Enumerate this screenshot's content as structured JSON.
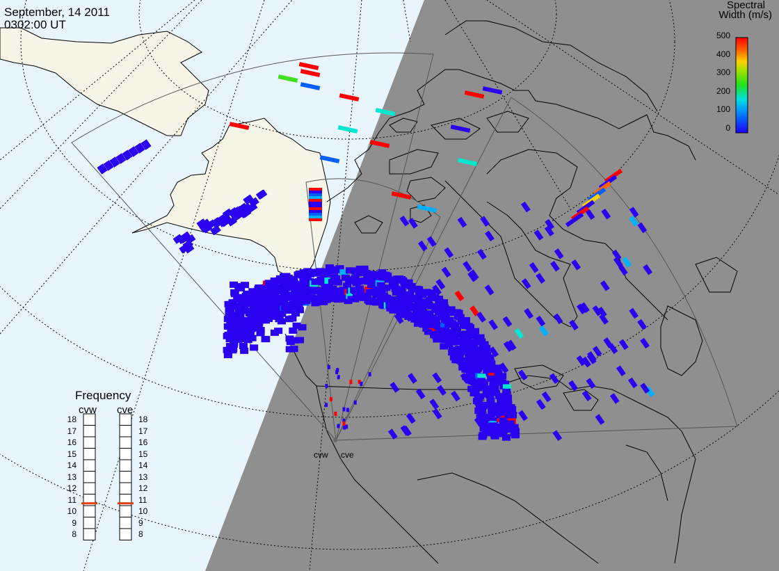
{
  "header": {
    "date": "September, 14 2011",
    "time": "0302:00 UT"
  },
  "legend": {
    "title_line1": "Spectral",
    "title_line2": "Width (m/s)",
    "ticks": [
      "500",
      "400",
      "300",
      "200",
      "100",
      "0"
    ],
    "range": [
      0,
      500
    ]
  },
  "frequency_panel": {
    "title": "Frequency",
    "radars": [
      {
        "label": "cvw",
        "frequency_mhz": 10.7
      },
      {
        "label": "cve",
        "frequency_mhz": 10.7
      }
    ],
    "ticks": [
      "18",
      "17",
      "16",
      "15",
      "14",
      "13",
      "12",
      "11",
      "10",
      "9",
      "8"
    ]
  },
  "stations": {
    "west": "cvw",
    "east": "cve"
  },
  "colors": {
    "ocean": "#e8f5fc",
    "land_day": "#f6f5e8",
    "night": "#8f8f8f",
    "scatter_low": "#2b00f0",
    "scatter_high": "#ff0000",
    "frequency_marker": "#e0400a"
  }
}
